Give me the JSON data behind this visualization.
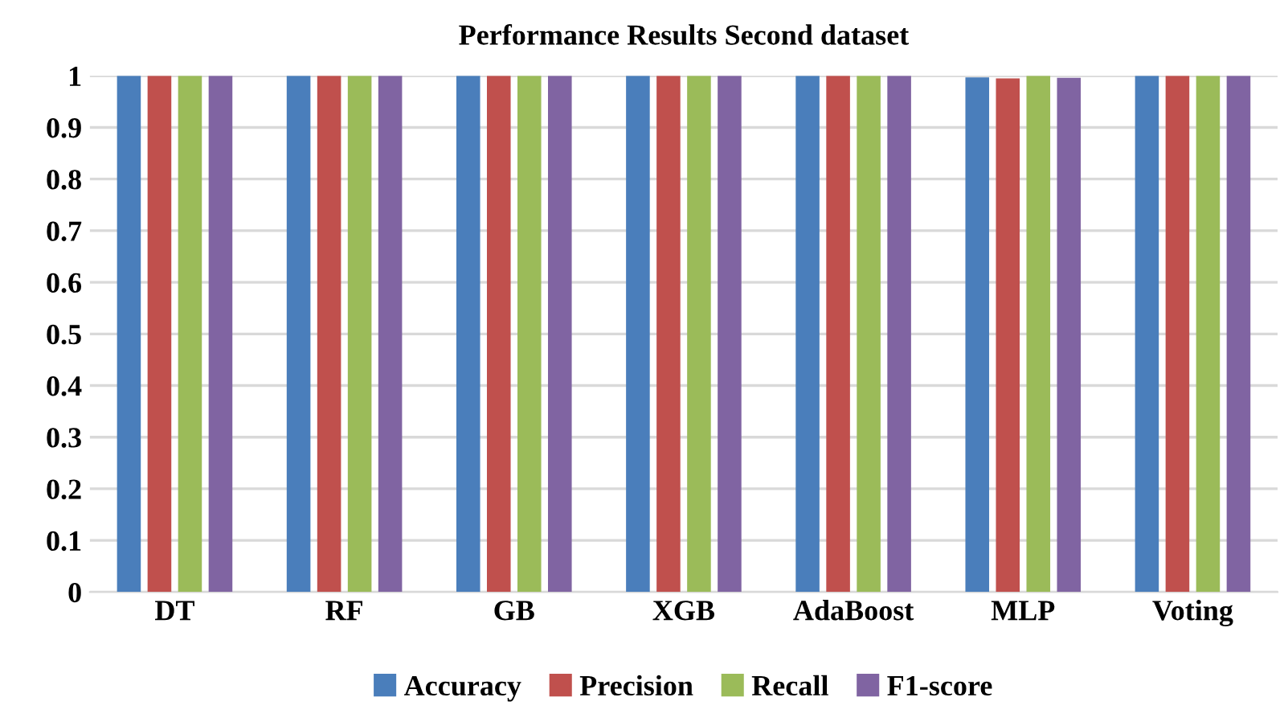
{
  "chart_data": {
    "type": "bar",
    "title": "Performance Results Second dataset",
    "categories": [
      "DT",
      "RF",
      "GB",
      "XGB",
      "AdaBoost",
      "MLP",
      "Voting"
    ],
    "series": [
      {
        "name": "Accuracy",
        "color": "#4a7ebb",
        "values": [
          1,
          1,
          1,
          1,
          1,
          0.997,
          1
        ]
      },
      {
        "name": "Precision",
        "color": "#c0504d",
        "values": [
          1,
          1,
          1,
          1,
          1,
          0.995,
          1
        ]
      },
      {
        "name": "Recall",
        "color": "#9bbb59",
        "values": [
          1,
          1,
          1,
          1,
          1,
          1,
          1
        ]
      },
      {
        "name": "F1-score",
        "color": "#8064a2",
        "values": [
          1,
          1,
          1,
          1,
          1,
          0.996,
          1
        ]
      }
    ],
    "ylim": [
      0,
      1
    ],
    "yticks": [
      0,
      0.1,
      0.2,
      0.3,
      0.4,
      0.5,
      0.6,
      0.7,
      0.8,
      0.9,
      1
    ],
    "grid": "y",
    "legend": "bottom"
  }
}
